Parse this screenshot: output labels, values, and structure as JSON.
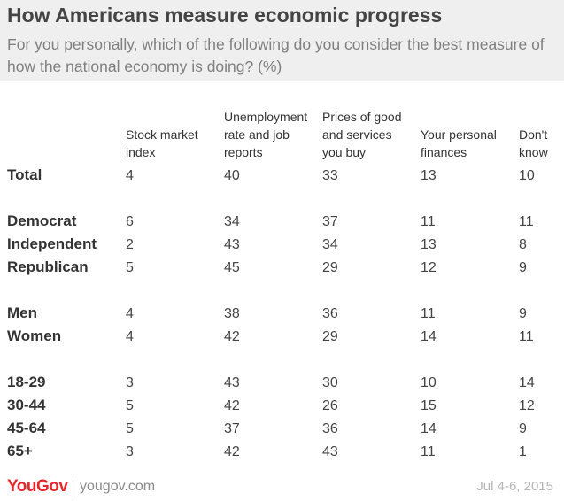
{
  "header": {
    "title": "How Americans measure economic progress",
    "subtitle": "For you personally, which of the following do you consider the best measure of how the national economy is doing? (%)"
  },
  "chart_data": {
    "type": "table",
    "title": "How Americans measure economic progress",
    "subtitle": "For you personally, which of the following do you consider the best measure of how the national economy is doing? (%)",
    "columns": [
      {
        "lines": [
          "Stock market",
          "index"
        ]
      },
      {
        "lines": [
          "Unemployment",
          "rate and job",
          "reports"
        ]
      },
      {
        "lines": [
          "Prices of good",
          "and services",
          "you buy"
        ]
      },
      {
        "lines": [
          "Your personal",
          "finances"
        ]
      },
      {
        "lines": [
          "Don't",
          "know"
        ]
      }
    ],
    "rows": [
      {
        "label": "Total",
        "values": [
          4,
          40,
          33,
          13,
          10
        ]
      },
      {
        "label": "Democrat",
        "values": [
          6,
          34,
          37,
          11,
          11
        ]
      },
      {
        "label": "Independent",
        "values": [
          2,
          43,
          34,
          13,
          8
        ]
      },
      {
        "label": "Republican",
        "values": [
          5,
          45,
          29,
          12,
          9
        ]
      },
      {
        "label": "Men",
        "values": [
          4,
          38,
          36,
          11,
          9
        ]
      },
      {
        "label": "Women",
        "values": [
          4,
          42,
          29,
          14,
          11
        ]
      },
      {
        "label": "18-29",
        "values": [
          3,
          43,
          30,
          10,
          14
        ]
      },
      {
        "label": "30-44",
        "values": [
          5,
          42,
          26,
          15,
          12
        ]
      },
      {
        "label": "45-64",
        "values": [
          5,
          37,
          36,
          14,
          9
        ]
      },
      {
        "label": "65+",
        "values": [
          3,
          42,
          43,
          11,
          1
        ]
      }
    ]
  },
  "footer": {
    "logo": "YouGov",
    "site": "yougov.com",
    "date": "Jul 4-6, 2015"
  },
  "colors": {
    "header_bg": "#efefef",
    "title": "#444444",
    "subtitle": "#7f7f7f",
    "logo": "#e8262b",
    "date": "#b5b5b5"
  }
}
